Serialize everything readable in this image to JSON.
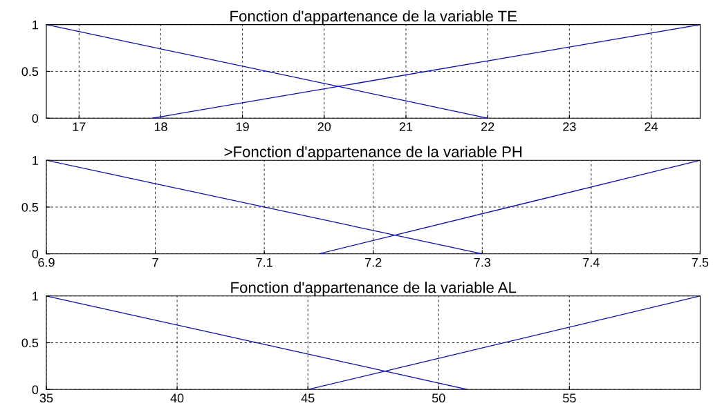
{
  "chart_data": [
    {
      "type": "line",
      "title": "Fonction d'appartenance de la variable TE",
      "xlim": [
        16.6,
        24.6
      ],
      "xticks": [
        17,
        18,
        19,
        20,
        21,
        22,
        23,
        24
      ],
      "ylim": [
        0,
        1
      ],
      "yticks": [
        0,
        0.5,
        1
      ],
      "grid": true,
      "line_style": "solid",
      "series": [
        {
          "color": "#0000ff",
          "x": [
            16.6,
            22
          ],
          "values": [
            1,
            0
          ]
        },
        {
          "color": "#0000ff",
          "x": [
            17.9,
            24.6
          ],
          "values": [
            0,
            1
          ]
        }
      ]
    },
    {
      "type": "line",
      "title": ">Fonction d'appartenance de la variable PH",
      "xlim": [
        6.9,
        7.5
      ],
      "xticks": [
        6.9,
        7,
        7.1,
        7.2,
        7.3,
        7.4,
        7.5
      ],
      "ylim": [
        0,
        1
      ],
      "yticks": [
        0,
        0.5,
        1
      ],
      "grid": true,
      "line_style": "solid",
      "series": [
        {
          "color": "#0000ff",
          "x": [
            6.9,
            7.3
          ],
          "values": [
            1,
            0
          ]
        },
        {
          "color": "#0000ff",
          "x": [
            7.15,
            7.5
          ],
          "values": [
            0,
            1
          ]
        }
      ]
    },
    {
      "type": "line",
      "title": "Fonction d'appartenance de la variable AL",
      "xlim": [
        35,
        60
      ],
      "xticks": [
        35,
        40,
        45,
        50,
        55
      ],
      "ylim": [
        0,
        1
      ],
      "yticks": [
        0,
        0.5,
        1
      ],
      "grid": true,
      "line_style": "solid",
      "series": [
        {
          "color": "#0000ff",
          "x": [
            35,
            51.1
          ],
          "values": [
            1,
            0
          ]
        },
        {
          "color": "#0000ff",
          "x": [
            45,
            60
          ],
          "values": [
            0,
            1
          ]
        }
      ]
    }
  ]
}
